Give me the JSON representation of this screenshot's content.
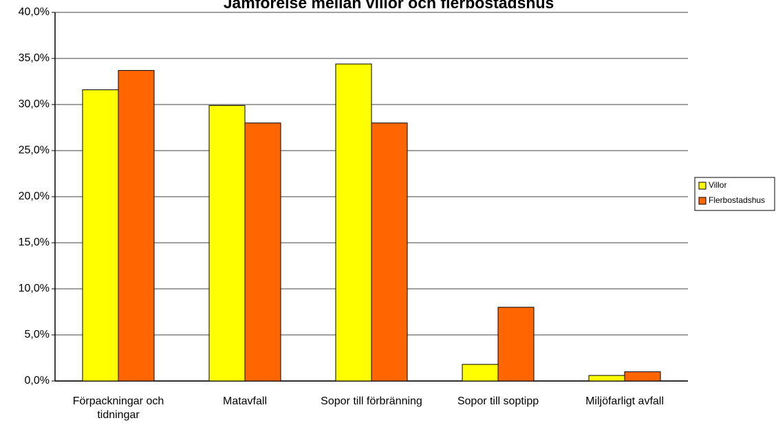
{
  "chart_data": {
    "type": "bar",
    "title": "Jämförelse mellan villor och flerbostadshus",
    "categories": [
      "Förpackningar och tidningar",
      "Matavfall",
      "Sopor till förbränning",
      "Sopor till soptipp",
      "Miljöfarligt avfall"
    ],
    "series": [
      {
        "name": "Villor",
        "color": "#ffff00",
        "values": [
          31.6,
          29.9,
          34.4,
          1.8,
          0.6
        ]
      },
      {
        "name": "Flerbostadshus",
        "color": "#ff6600",
        "values": [
          33.7,
          28.0,
          28.0,
          8.0,
          1.0
        ]
      }
    ],
    "ylim": [
      0,
      40
    ],
    "yticks": [
      {
        "value": 0,
        "label": "0,0%"
      },
      {
        "value": 5,
        "label": "5,0%"
      },
      {
        "value": 10,
        "label": "10,0%"
      },
      {
        "value": 15,
        "label": "15,0%"
      },
      {
        "value": 20,
        "label": "20,0%"
      },
      {
        "value": 25,
        "label": "25,0%"
      },
      {
        "value": 30,
        "label": "30,0%"
      },
      {
        "value": 35,
        "label": "35,0%"
      },
      {
        "value": 40,
        "label": "40,0%"
      }
    ],
    "grid": true,
    "legend": "right"
  }
}
